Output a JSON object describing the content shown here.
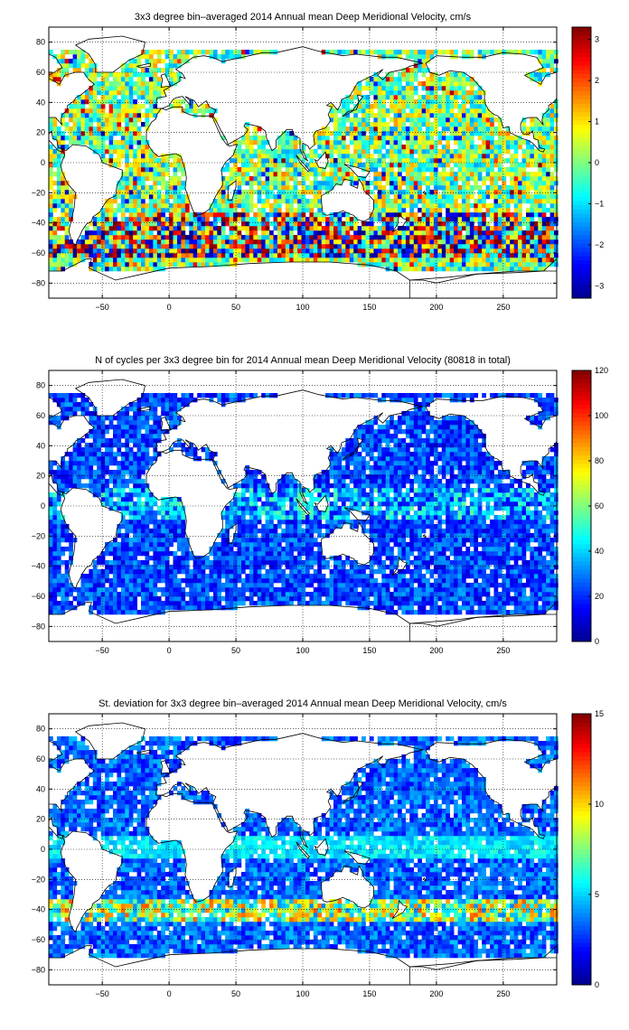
{
  "colors": {
    "colormap": "jet",
    "colormap_stops": [
      "#00008f",
      "#0000ff",
      "#00ffff",
      "#ffff00",
      "#ff0000",
      "#800000"
    ],
    "frame": "#000000",
    "grid": "#000000",
    "coastline": "#000000",
    "background": "#ffffff"
  },
  "chart_data": [
    {
      "type": "heatmap",
      "title": "3x3 degree bin–averaged 2014 Annual mean Deep Meridional Velocity, cm/s",
      "xlabel": "",
      "ylabel": "",
      "xlim": [
        -90,
        290
      ],
      "ylim": [
        -90,
        90
      ],
      "xticks": [
        -50,
        0,
        50,
        100,
        150,
        200,
        250
      ],
      "yticks": [
        -80,
        -60,
        -40,
        -20,
        0,
        20,
        40,
        60,
        80
      ],
      "grid": true,
      "bin_size_deg": 3,
      "colorbar": {
        "range": [
          -3.3,
          3.3
        ],
        "ticks": [
          -3,
          -2,
          -1,
          0,
          1,
          2,
          3
        ]
      }
    },
    {
      "type": "heatmap",
      "title": "N of cycles per 3x3 degree bin for 2014 Annual mean Deep Meridional Velocity (80818 in total)",
      "xlabel": "",
      "ylabel": "",
      "xlim": [
        -90,
        290
      ],
      "ylim": [
        -90,
        90
      ],
      "xticks": [
        -50,
        0,
        50,
        100,
        150,
        200,
        250
      ],
      "yticks": [
        -80,
        -60,
        -40,
        -20,
        0,
        20,
        40,
        60,
        80
      ],
      "grid": true,
      "bin_size_deg": 3,
      "colorbar": {
        "range": [
          0,
          120
        ],
        "ticks": [
          0,
          20,
          40,
          60,
          80,
          100,
          120
        ]
      }
    },
    {
      "type": "heatmap",
      "title": "St. deviation for 3x3 degree bin–averaged 2014 Annual mean Deep Meridional Velocity, cm/s",
      "xlabel": "",
      "ylabel": "",
      "xlim": [
        -90,
        290
      ],
      "ylim": [
        -90,
        90
      ],
      "xticks": [
        -50,
        0,
        50,
        100,
        150,
        200,
        250
      ],
      "yticks": [
        -80,
        -60,
        -40,
        -20,
        0,
        20,
        40,
        60,
        80
      ],
      "grid": true,
      "bin_size_deg": 3,
      "colorbar": {
        "range": [
          0,
          15
        ],
        "ticks": [
          0,
          5,
          10,
          15
        ]
      }
    }
  ]
}
